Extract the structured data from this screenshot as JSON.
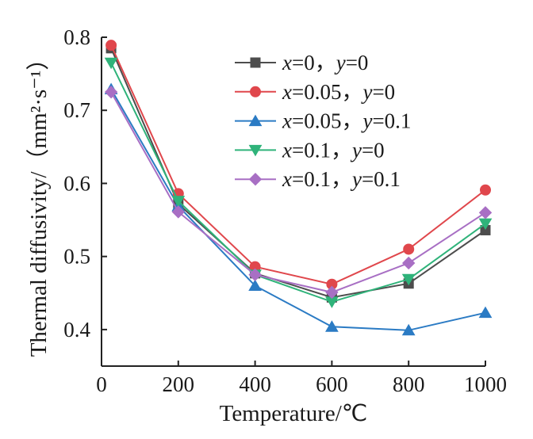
{
  "chart_data": {
    "type": "line",
    "x": [
      25,
      200,
      400,
      600,
      800,
      1000
    ],
    "xlabel": "Temperature/℃",
    "ylabel": "Thermal diffusivity/（mm²·s⁻¹）",
    "xlim": [
      0,
      1000
    ],
    "ylim": [
      0.35,
      0.8
    ],
    "xticks": [
      "0",
      "200",
      "400",
      "600",
      "800",
      "1000"
    ],
    "yticks": [
      "0.4",
      "0.5",
      "0.6",
      "0.7",
      "0.8"
    ],
    "grid": false,
    "legend_position": "top-right",
    "series": [
      {
        "name": "x=0，y=0",
        "x_part": "x",
        "x_val": "=0，",
        "y_part": "y",
        "y_val": "=0",
        "color": "#4d4d4d",
        "marker": "square",
        "values": [
          0.785,
          0.572,
          0.477,
          0.444,
          0.463,
          0.536
        ]
      },
      {
        "name": "x=0.05，y=0",
        "x_part": "x",
        "x_val": "=0.05，",
        "y_part": "y",
        "y_val": "=0",
        "color": "#e0474c",
        "marker": "circle",
        "values": [
          0.789,
          0.586,
          0.486,
          0.462,
          0.51,
          0.591
        ]
      },
      {
        "name": "x=0.05，y=0.1",
        "x_part": "x",
        "x_val": "=0.05，",
        "y_part": "y",
        "y_val": "=0.1",
        "color": "#2b7bc4",
        "marker": "triangle-up",
        "values": [
          0.729,
          0.569,
          0.46,
          0.404,
          0.399,
          0.423
        ]
      },
      {
        "name": "x=0.1，y=0",
        "x_part": "x",
        "x_val": "=0.1，",
        "y_part": "y",
        "y_val": "=0",
        "color": "#2fb37a",
        "marker": "triangle-down",
        "values": [
          0.765,
          0.576,
          0.475,
          0.438,
          0.469,
          0.545
        ]
      },
      {
        "name": "x=0.1，y=0.1",
        "x_part": "x",
        "x_val": "=0.1，",
        "y_part": "y",
        "y_val": "=0.1",
        "color": "#a86fc4",
        "marker": "diamond",
        "values": [
          0.725,
          0.561,
          0.475,
          0.451,
          0.491,
          0.56
        ]
      }
    ]
  }
}
